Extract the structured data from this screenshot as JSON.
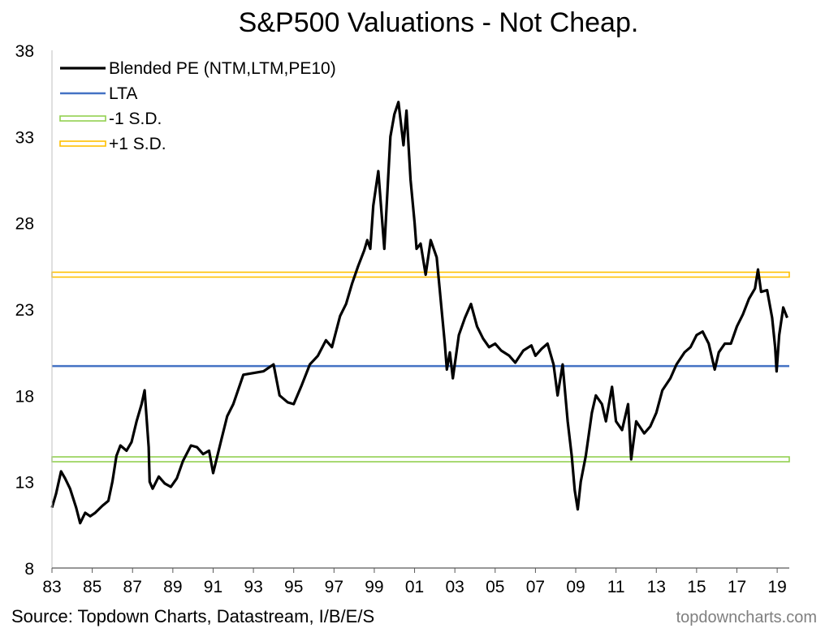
{
  "source": "Source: Topdown Charts, Datastream, I/B/E/S",
  "watermark": "topdowncharts.com",
  "chart_data": {
    "type": "line",
    "title": "S&P500 Valuations - Not Cheap.",
    "xlabel": "",
    "ylabel": "",
    "ylim": [
      8,
      38
    ],
    "xlim": [
      1983,
      2019.6
    ],
    "y_ticks": [
      8,
      13,
      18,
      23,
      28,
      33,
      38
    ],
    "x_tick_labels": [
      "83",
      "85",
      "87",
      "89",
      "91",
      "93",
      "95",
      "97",
      "99",
      "01",
      "03",
      "05",
      "07",
      "09",
      "11",
      "13",
      "15",
      "17",
      "19"
    ],
    "legend_position": "top-left",
    "grid": false,
    "colors": {
      "blended": "#000000",
      "lta": "#4472c4",
      "minus_sd": "#92d050",
      "plus_sd": "#ffc000"
    },
    "series": [
      {
        "name": "Blended PE (NTM,LTM,PE10)",
        "style": "line",
        "x": [
          1983.0,
          1983.2,
          1983.45,
          1983.65,
          1983.9,
          1984.2,
          1984.4,
          1984.65,
          1984.9,
          1985.15,
          1985.5,
          1985.8,
          1986.0,
          1986.2,
          1986.4,
          1986.7,
          1986.95,
          1987.2,
          1987.45,
          1987.6,
          1987.8,
          1987.85,
          1988.0,
          1988.3,
          1988.6,
          1988.9,
          1989.2,
          1989.5,
          1989.9,
          1990.2,
          1990.5,
          1990.8,
          1991.0,
          1991.4,
          1991.7,
          1992.0,
          1992.5,
          1993.0,
          1993.5,
          1994.0,
          1994.3,
          1994.7,
          1995.0,
          1995.4,
          1995.8,
          1996.2,
          1996.6,
          1996.9,
          1997.3,
          1997.6,
          1997.9,
          1998.2,
          1998.5,
          1998.65,
          1998.8,
          1998.95,
          1999.2,
          1999.5,
          1999.8,
          2000.0,
          2000.2,
          2000.45,
          2000.6,
          2000.8,
          2001.0,
          2001.1,
          2001.3,
          2001.55,
          2001.8,
          2002.1,
          2002.3,
          2002.5,
          2002.6,
          2002.75,
          2002.9,
          2003.2,
          2003.5,
          2003.8,
          2004.1,
          2004.4,
          2004.7,
          2005.0,
          2005.3,
          2005.7,
          2006.0,
          2006.4,
          2006.8,
          2007.0,
          2007.3,
          2007.6,
          2007.9,
          2008.1,
          2008.35,
          2008.6,
          2008.8,
          2008.95,
          2009.1,
          2009.25,
          2009.5,
          2009.8,
          2010.0,
          2010.3,
          2010.5,
          2010.8,
          2011.0,
          2011.3,
          2011.6,
          2011.75,
          2012.0,
          2012.4,
          2012.7,
          2013.0,
          2013.3,
          2013.7,
          2014.0,
          2014.4,
          2014.7,
          2015.0,
          2015.3,
          2015.6,
          2015.9,
          2016.1,
          2016.4,
          2016.7,
          2017.0,
          2017.3,
          2017.6,
          2017.9,
          2018.05,
          2018.2,
          2018.5,
          2018.75,
          2018.9,
          2018.97,
          2019.1,
          2019.3,
          2019.4,
          2019.5
        ],
        "y": [
          11.5,
          12.3,
          13.6,
          13.2,
          12.6,
          11.5,
          10.6,
          11.2,
          11.0,
          11.2,
          11.6,
          11.9,
          13.0,
          14.5,
          15.1,
          14.8,
          15.3,
          16.5,
          17.5,
          18.3,
          15.0,
          13.0,
          12.6,
          13.3,
          12.9,
          12.7,
          13.2,
          14.2,
          15.1,
          15.0,
          14.6,
          14.8,
          13.5,
          15.4,
          16.8,
          17.5,
          19.2,
          19.3,
          19.4,
          19.8,
          18.0,
          17.6,
          17.5,
          18.6,
          19.8,
          20.3,
          21.2,
          20.8,
          22.6,
          23.3,
          24.5,
          25.5,
          26.4,
          27.0,
          26.5,
          29.0,
          31.0,
          26.5,
          33.0,
          34.3,
          35.0,
          32.5,
          34.5,
          30.5,
          28.0,
          26.5,
          26.8,
          25.0,
          27.0,
          26.0,
          23.5,
          21.0,
          19.5,
          20.5,
          19.0,
          21.5,
          22.5,
          23.3,
          22.0,
          21.3,
          20.8,
          21.0,
          20.6,
          20.3,
          19.9,
          20.6,
          20.9,
          20.3,
          20.7,
          21.0,
          19.8,
          18.0,
          19.8,
          16.5,
          14.5,
          12.5,
          11.4,
          13.0,
          14.5,
          17.0,
          18.0,
          17.5,
          16.5,
          18.5,
          16.5,
          16.0,
          17.5,
          14.3,
          16.5,
          15.8,
          16.2,
          17.0,
          18.3,
          19.0,
          19.8,
          20.5,
          20.8,
          21.5,
          21.7,
          21.0,
          19.5,
          20.5,
          21.0,
          21.0,
          22.0,
          22.7,
          23.6,
          24.2,
          25.3,
          24.0,
          24.1,
          22.5,
          20.8,
          19.4,
          21.5,
          23.1,
          22.8,
          22.5
        ]
      },
      {
        "name": "LTA",
        "style": "hline",
        "value": 19.7
      },
      {
        "name": "-1 S.D.",
        "style": "hline",
        "value": 14.3
      },
      {
        "name": "+1 S.D.",
        "style": "hline",
        "value": 25.0
      }
    ]
  }
}
